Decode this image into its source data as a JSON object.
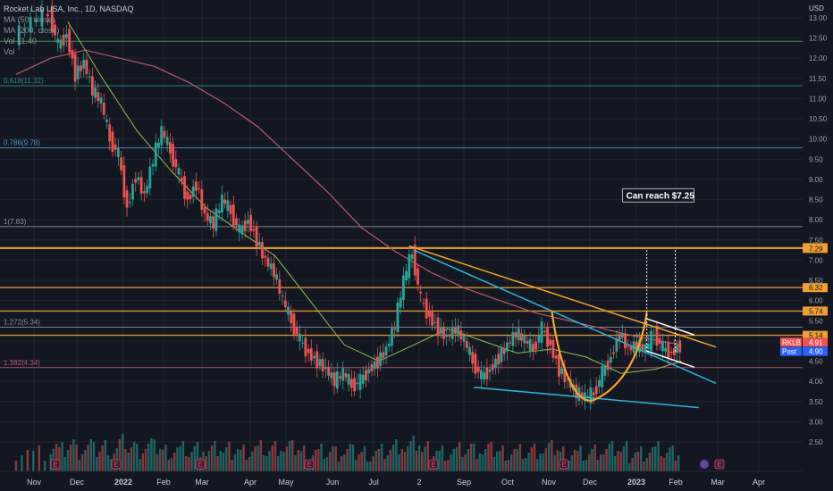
{
  "header": {
    "symbol": "Rocket Lab USA, Inc., 1D, NASDAQ",
    "ma50": "MA (50, close)",
    "ma200": "MA (200, close)",
    "vol_label": "Vol",
    "vol_value": "11.40",
    "vol2": "Vol"
  },
  "currency": "USD",
  "colors": {
    "background": "#131722",
    "grid": "#1f2430",
    "up": "#26a69a",
    "down": "#ef5350",
    "ma50": "#8bc34a",
    "ma200": "#c1586b",
    "fib_line": "#4a90c8",
    "resistance": "#f0a030",
    "wedge_orange": "#f5a623",
    "channel_blue": "#29b6d8",
    "cup": "#f5a623"
  },
  "chart_data": {
    "type": "candlestick",
    "title": "Rocket Lab USA, Inc., 1D, NASDAQ",
    "x_labels": [
      "Nov",
      "Dec",
      "2022",
      "Feb",
      "Mar",
      "Apr",
      "May",
      "Jun",
      "Jul",
      "2",
      "Sep",
      "Oct",
      "Nov",
      "Dec",
      "2023",
      "Feb",
      "Mar",
      "Apr"
    ],
    "y_ticks": [
      "13.00",
      "12.50",
      "12.00",
      "11.50",
      "11.00",
      "10.50",
      "10.00",
      "9.50",
      "9.00",
      "8.50",
      "8.00",
      "7.50",
      "7.00",
      "6.50",
      "6.00",
      "5.50",
      "5.00",
      "4.50",
      "4.00",
      "3.50",
      "3.00",
      "2.50"
    ],
    "ylim": [
      2.2,
      13.2
    ],
    "price_path": [
      [
        0,
        12.5
      ],
      [
        2,
        12.9
      ],
      [
        4,
        13.1
      ],
      [
        5,
        12.3
      ],
      [
        6,
        12.6
      ],
      [
        7,
        11.6
      ],
      [
        8,
        11.9
      ],
      [
        9,
        11.2
      ],
      [
        10,
        10.9
      ],
      [
        11,
        10.0
      ],
      [
        12,
        9.6
      ],
      [
        13,
        8.3
      ],
      [
        14,
        9.1
      ],
      [
        15,
        8.6
      ],
      [
        16,
        9.5
      ],
      [
        17,
        10.2
      ],
      [
        18,
        9.7
      ],
      [
        19,
        9.1
      ],
      [
        20,
        8.5
      ],
      [
        21,
        8.9
      ],
      [
        22,
        8.1
      ],
      [
        23,
        7.9
      ],
      [
        24,
        8.5
      ],
      [
        25,
        8.2
      ],
      [
        26,
        7.7
      ],
      [
        27,
        8.0
      ],
      [
        28,
        7.5
      ],
      [
        29,
        7.0
      ],
      [
        30,
        6.7
      ],
      [
        31,
        6.0
      ],
      [
        32,
        5.5
      ],
      [
        33,
        5.0
      ],
      [
        34,
        4.7
      ],
      [
        35,
        4.5
      ],
      [
        36,
        4.3
      ],
      [
        37,
        4.0
      ],
      [
        38,
        4.2
      ],
      [
        39,
        3.9
      ],
      [
        40,
        4.0
      ],
      [
        41,
        4.3
      ],
      [
        42,
        4.5
      ],
      [
        43,
        4.8
      ],
      [
        44,
        5.4
      ],
      [
        45,
        6.5
      ],
      [
        46,
        7.2
      ],
      [
        47,
        6.0
      ],
      [
        48,
        5.6
      ],
      [
        49,
        5.3
      ],
      [
        50,
        5.1
      ],
      [
        51,
        5.3
      ],
      [
        52,
        5.0
      ],
      [
        53,
        4.5
      ],
      [
        54,
        4.1
      ],
      [
        55,
        4.3
      ],
      [
        56,
        4.6
      ],
      [
        57,
        4.9
      ],
      [
        58,
        5.2
      ],
      [
        59,
        5.0
      ],
      [
        60,
        4.8
      ],
      [
        61,
        5.3
      ],
      [
        62,
        4.9
      ],
      [
        63,
        4.3
      ],
      [
        64,
        4.0
      ],
      [
        65,
        3.7
      ],
      [
        66,
        3.6
      ],
      [
        67,
        3.7
      ],
      [
        68,
        4.2
      ],
      [
        69,
        4.6
      ],
      [
        70,
        5.2
      ],
      [
        71,
        4.8
      ],
      [
        72,
        4.9
      ],
      [
        73,
        4.8
      ],
      [
        74,
        5.2
      ],
      [
        75,
        4.8
      ],
      [
        76,
        4.7
      ],
      [
        77,
        4.9
      ]
    ],
    "ma50_path": [
      [
        6,
        12.9
      ],
      [
        10,
        11.5
      ],
      [
        14,
        10.2
      ],
      [
        18,
        9.2
      ],
      [
        22,
        8.3
      ],
      [
        26,
        7.7
      ],
      [
        30,
        7.1
      ],
      [
        34,
        6.0
      ],
      [
        38,
        4.9
      ],
      [
        42,
        4.5
      ],
      [
        46,
        4.9
      ],
      [
        50,
        5.3
      ],
      [
        54,
        5.0
      ],
      [
        58,
        4.7
      ],
      [
        62,
        4.8
      ],
      [
        66,
        4.6
      ],
      [
        70,
        4.2
      ],
      [
        74,
        4.3
      ],
      [
        77,
        4.5
      ]
    ],
    "ma200_path": [
      [
        0,
        11.6
      ],
      [
        4,
        12.0
      ],
      [
        8,
        12.2
      ],
      [
        12,
        12.0
      ],
      [
        16,
        11.8
      ],
      [
        20,
        11.4
      ],
      [
        24,
        10.9
      ],
      [
        28,
        10.3
      ],
      [
        32,
        9.5
      ],
      [
        36,
        8.7
      ],
      [
        40,
        7.8
      ],
      [
        44,
        7.2
      ],
      [
        48,
        6.7
      ],
      [
        52,
        6.3
      ],
      [
        56,
        6.0
      ],
      [
        60,
        5.7
      ],
      [
        64,
        5.5
      ],
      [
        68,
        5.3
      ],
      [
        72,
        5.1
      ],
      [
        77,
        4.9
      ]
    ],
    "ranges": {
      "x_index_max": 84
    },
    "fib_levels": [
      {
        "label": "0.618(11.32)",
        "value": 11.32,
        "color": "#2a8c8c"
      },
      {
        "label": "0.786(9.78)",
        "value": 9.78,
        "color": "#4a90c8"
      },
      {
        "label": "1(7.83)",
        "value": 7.83,
        "color": "#8a8f9c"
      },
      {
        "label": "1.272(5.34)",
        "value": 5.34,
        "color": "#8a8f9c"
      },
      {
        "label": "1.382(4.34)",
        "value": 4.34,
        "color": "#c1586b"
      }
    ],
    "green_level": 12.42,
    "resistance_levels": [
      {
        "label": "7.31",
        "value": 7.31
      },
      {
        "label": "7.29",
        "value": 7.29
      },
      {
        "label": "6.32",
        "value": 6.32
      },
      {
        "label": "5.74",
        "value": 5.74
      },
      {
        "label": "5.14",
        "value": 5.14
      }
    ],
    "price_tags": [
      {
        "name": "RKLB",
        "value": "4.91",
        "color": "#ef5350"
      },
      {
        "name": "Post",
        "value": "4.90",
        "color": "#2962ff"
      }
    ],
    "annotation": "Can reach $7.25",
    "volume_labels": [
      "E",
      "E",
      "E",
      "E",
      "E",
      "E",
      "E",
      "E"
    ]
  }
}
